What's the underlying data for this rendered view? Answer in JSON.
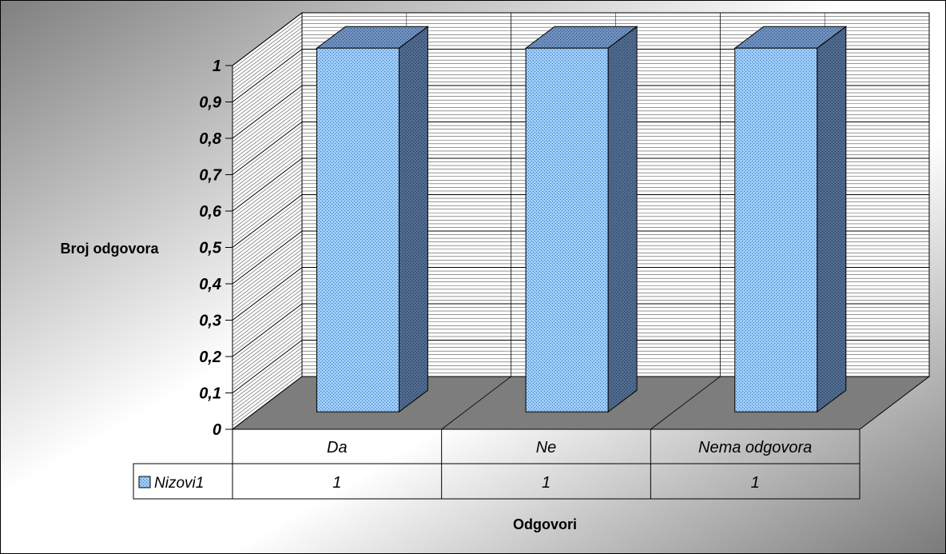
{
  "chart_data": {
    "type": "bar",
    "title": "",
    "categories": [
      "Da",
      "Ne",
      "Nema odgovora"
    ],
    "series": [
      {
        "name": "Nizovi1",
        "values": [
          1,
          1,
          1
        ]
      }
    ],
    "ylabel": "Broj odgovora",
    "xlabel": "Odgovori",
    "ylim": [
      0,
      1
    ],
    "yticks": [
      0,
      0.1,
      0.2,
      0.3,
      0.4,
      0.5,
      0.6,
      0.7,
      0.8,
      0.9,
      1
    ],
    "ytick_labels": [
      "0",
      "0,1",
      "0,2",
      "0,3",
      "0,4",
      "0,5",
      "0,6",
      "0,7",
      "0,8",
      "0,9",
      "1"
    ],
    "data_table": true,
    "grid": true,
    "colors": {
      "bar_front": "#99ccff",
      "bar_side": "#4f6a8e",
      "bar_top": "#6e90c0",
      "floor": "#7d7d7d",
      "walls": "#ffffff",
      "background_light": "#ffffff",
      "background_dark": "#7a7a7a"
    }
  }
}
